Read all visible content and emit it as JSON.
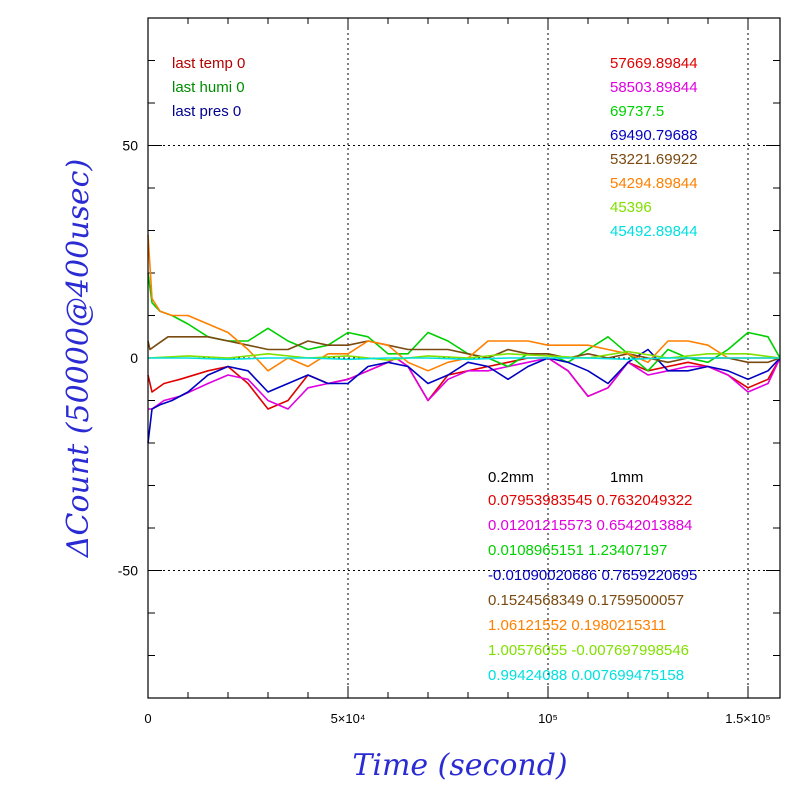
{
  "chart_data": {
    "type": "line",
    "xlabel": "Time (second)",
    "ylabel": "ΔCount (50000@400usec)",
    "xlim": [
      0,
      158000
    ],
    "ylim": [
      -80,
      80
    ],
    "grid": true,
    "x_ticks": [
      {
        "value": 0,
        "label": "0"
      },
      {
        "value": 50000,
        "label": "5×10⁴"
      },
      {
        "value": 100000,
        "label": "10⁵"
      },
      {
        "value": 150000,
        "label": "1.5×10⁵"
      }
    ],
    "y_ticks": [
      {
        "value": 50,
        "label": "50"
      },
      {
        "value": 0,
        "label": "0"
      },
      {
        "value": -50,
        "label": "-50"
      }
    ],
    "annotations_left": [
      {
        "text": "last temp 0",
        "color": "#b40000"
      },
      {
        "text": "last humi 0",
        "color": "#008c00"
      },
      {
        "text": "last pres 0",
        "color": "#000090"
      }
    ],
    "annotations_right": [
      {
        "text": "57669.89844",
        "color": "#e00000"
      },
      {
        "text": "58503.89844",
        "color": "#e000e0"
      },
      {
        "text": "69737.5",
        "color": "#00d000"
      },
      {
        "text": "69490.79688",
        "color": "#0000c0"
      },
      {
        "text": "53221.69922",
        "color": "#7a4a10"
      },
      {
        "text": "54294.89844",
        "color": "#ff8000"
      },
      {
        "text": "45396",
        "color": "#80e000"
      },
      {
        "text": "45492.89844",
        "color": "#00e0e0"
      }
    ],
    "fit_header": {
      "col1": "0.2mm",
      "col2": "1mm"
    },
    "fit_rows": [
      {
        "a": "0.07953983545",
        "b": "0.7632049322",
        "color": "#e00000"
      },
      {
        "a": "0.01201215573",
        "b": "0.6542013884",
        "color": "#e000e0"
      },
      {
        "a": "0.0108965151",
        "b": "1.23407197",
        "color": "#00d000"
      },
      {
        "a": "-0.01090020686",
        "b": "0.7659220695",
        "color": "#0000c0"
      },
      {
        "a": "0.1524568349",
        "b": "0.1759500057",
        "color": "#7a4a10"
      },
      {
        "a": "1.06121552",
        "b": "0.1980215311",
        "color": "#ff8000"
      },
      {
        "a": "1.00576055",
        "b": "-0.007697998546",
        "color": "#80e000"
      },
      {
        "a": "0.99424088",
        "b": "0.007699475158",
        "color": "#00e0e0"
      }
    ],
    "series": [
      {
        "color": "#e00000",
        "x": [
          0,
          1000,
          4000,
          8000,
          15000,
          20000,
          25000,
          30000,
          35000,
          40000,
          45000,
          50000,
          55000,
          60000,
          62000,
          65000,
          70000,
          75000,
          80000,
          85000,
          90000,
          95000,
          100000,
          105000,
          110000,
          115000,
          120000,
          125000,
          130000,
          135000,
          140000,
          145000,
          150000,
          155000,
          158000
        ],
        "y": [
          -4,
          -8,
          -6,
          -5,
          -3,
          -2,
          -6,
          -12,
          -10,
          -4,
          -6,
          -5,
          -3,
          -1,
          0,
          -2,
          -10,
          -4,
          -3,
          -2,
          -1,
          0,
          0,
          -3,
          -9,
          -7,
          -1,
          -3,
          -2,
          -1,
          -2,
          -4,
          -7,
          -5,
          0
        ]
      },
      {
        "color": "#e000e0",
        "x": [
          0,
          1000,
          4000,
          8000,
          15000,
          20000,
          25000,
          30000,
          35000,
          40000,
          45000,
          50000,
          55000,
          60000,
          62000,
          65000,
          70000,
          75000,
          80000,
          85000,
          90000,
          95000,
          100000,
          105000,
          110000,
          115000,
          120000,
          125000,
          130000,
          135000,
          140000,
          145000,
          150000,
          155000,
          158000
        ],
        "y": [
          -12,
          -12,
          -10,
          -9,
          -6,
          -4,
          -5,
          -10,
          -12,
          -7,
          -6,
          -5,
          -3,
          -1,
          0,
          -2,
          -10,
          -5,
          -3,
          -3,
          -2,
          -1,
          0,
          -3,
          -9,
          -7,
          -1,
          -4,
          -3,
          -2,
          -2,
          -4,
          -8,
          -6,
          0
        ]
      },
      {
        "color": "#00d000",
        "x": [
          0,
          1000,
          3000,
          6000,
          10000,
          15000,
          20000,
          25000,
          30000,
          35000,
          40000,
          45000,
          50000,
          55000,
          60000,
          65000,
          70000,
          75000,
          80000,
          85000,
          90000,
          95000,
          100000,
          105000,
          110000,
          115000,
          120000,
          125000,
          130000,
          135000,
          140000,
          145000,
          150000,
          155000,
          158000
        ],
        "y": [
          20,
          13,
          11,
          10,
          8,
          5,
          4,
          4,
          7,
          4,
          2,
          3,
          6,
          5,
          1,
          1,
          6,
          4,
          1,
          0,
          -2,
          1,
          1,
          -1,
          2,
          5,
          1,
          -3,
          2,
          0,
          -1,
          2,
          6,
          5,
          0
        ]
      },
      {
        "color": "#0000c0",
        "x": [
          0,
          1000,
          3000,
          6000,
          10000,
          15000,
          20000,
          25000,
          30000,
          35000,
          40000,
          45000,
          50000,
          55000,
          60000,
          65000,
          70000,
          75000,
          80000,
          85000,
          90000,
          95000,
          100000,
          105000,
          110000,
          115000,
          120000,
          125000,
          130000,
          135000,
          140000,
          145000,
          150000,
          155000,
          158000
        ],
        "y": [
          -20,
          -12,
          -11,
          -10,
          -8,
          -4,
          -2,
          -3,
          -8,
          -6,
          -4,
          -6,
          -6,
          -2,
          -1,
          -2,
          -6,
          -4,
          -1,
          -2,
          -5,
          -2,
          0,
          -1,
          -3,
          -6,
          -1,
          2,
          -3,
          -3,
          -2,
          -3,
          -5,
          -3,
          0
        ]
      },
      {
        "color": "#7a4a10",
        "x": [
          0,
          500,
          2000,
          5000,
          10000,
          15000,
          20000,
          25000,
          30000,
          35000,
          40000,
          45000,
          50000,
          55000,
          60000,
          65000,
          70000,
          75000,
          80000,
          85000,
          90000,
          95000,
          100000,
          105000,
          110000,
          115000,
          120000,
          125000,
          130000,
          135000,
          140000,
          145000,
          150000,
          155000,
          158000
        ],
        "y": [
          4,
          2,
          3,
          5,
          5,
          5,
          4,
          3,
          2,
          2,
          4,
          3,
          3,
          4,
          3,
          2,
          2,
          2,
          1,
          0,
          2,
          1,
          1,
          0,
          1,
          0,
          1,
          0,
          -1,
          0,
          0,
          0,
          -1,
          -1,
          0
        ]
      },
      {
        "color": "#ff8000",
        "x": [
          0,
          1000,
          3000,
          6000,
          10000,
          15000,
          20000,
          25000,
          30000,
          35000,
          40000,
          45000,
          50000,
          55000,
          60000,
          65000,
          70000,
          75000,
          80000,
          85000,
          90000,
          95000,
          100000,
          105000,
          110000,
          115000,
          120000,
          125000,
          130000,
          135000,
          140000,
          145000,
          150000,
          155000,
          158000
        ],
        "y": [
          29,
          14,
          11,
          10,
          10,
          8,
          6,
          2,
          -3,
          0,
          -2,
          1,
          1,
          4,
          3,
          -1,
          -3,
          -1,
          0,
          4,
          4,
          4,
          3,
          3,
          3,
          2,
          1,
          -1,
          4,
          4,
          3,
          0,
          0,
          0,
          0
        ]
      },
      {
        "color": "#80e000",
        "x": [
          0,
          10000,
          20000,
          30000,
          40000,
          50000,
          60000,
          70000,
          80000,
          90000,
          100000,
          110000,
          120000,
          130000,
          140000,
          150000,
          158000
        ],
        "y": [
          0,
          0.5,
          0,
          1,
          0,
          0.5,
          -0.5,
          0.5,
          0,
          1,
          0.5,
          0,
          1.5,
          0,
          1,
          1,
          0
        ]
      },
      {
        "color": "#00e0e0",
        "x": [
          0,
          10000,
          20000,
          30000,
          40000,
          50000,
          60000,
          70000,
          80000,
          90000,
          100000,
          110000,
          120000,
          130000,
          140000,
          150000,
          158000
        ],
        "y": [
          0,
          0,
          -0.3,
          0,
          0,
          -0.3,
          0,
          0,
          -0.3,
          0,
          0,
          0,
          -0.3,
          0,
          0,
          0,
          0
        ]
      }
    ]
  }
}
